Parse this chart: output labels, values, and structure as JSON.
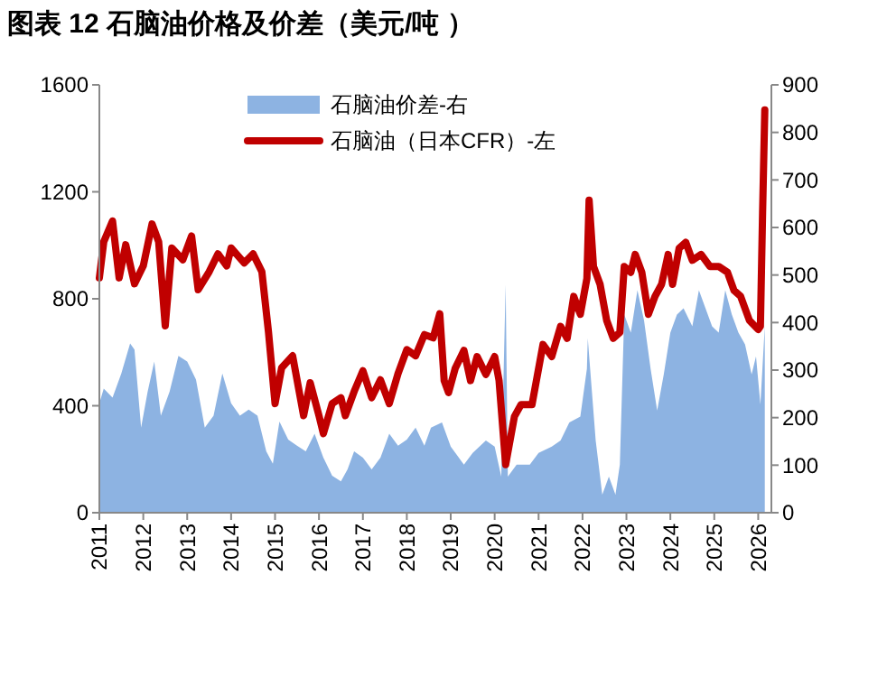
{
  "chart_data": {
    "type": "line",
    "title": "图表 12 石脑油价格及价差（美元/吨 ）",
    "xlim": [
      2011,
      2026.3
    ],
    "xticks": [
      2011,
      2012,
      2013,
      2014,
      2015,
      2016,
      2017,
      2018,
      2019,
      2020,
      2021,
      2022,
      2023,
      2024,
      2025,
      2026
    ],
    "ylim": [
      0,
      1600
    ],
    "yticks": [
      0,
      400,
      800,
      1200,
      1600
    ],
    "y2lim": [
      0,
      900
    ],
    "y2ticks": [
      0,
      100,
      200,
      300,
      400,
      500,
      600,
      700,
      800,
      900
    ],
    "legend": "top",
    "grid": false,
    "marker": "none",
    "line_style": "solid",
    "series": [
      {
        "name": "石脑油价差-右",
        "type": "area",
        "axis": "y2",
        "color": "#8db3e2",
        "x": [
          2011,
          2011.1,
          2011.3,
          2011.5,
          2011.7,
          2011.8,
          2011.95,
          2012.1,
          2012.25,
          2012.4,
          2012.6,
          2012.8,
          2013,
          2013.2,
          2013.4,
          2013.6,
          2013.8,
          2014,
          2014.2,
          2014.4,
          2014.6,
          2014.8,
          2014.95,
          2015.1,
          2015.3,
          2015.5,
          2015.7,
          2015.9,
          2016.1,
          2016.3,
          2016.5,
          2016.65,
          2016.8,
          2017,
          2017.2,
          2017.4,
          2017.6,
          2017.8,
          2018,
          2018.2,
          2018.4,
          2018.55,
          2018.8,
          2019,
          2019.3,
          2019.5,
          2019.8,
          2020,
          2020.15,
          2020.25,
          2020.3,
          2020.5,
          2020.8,
          2021,
          2021.3,
          2021.5,
          2021.7,
          2021.95,
          2022.1,
          2022.12,
          2022.3,
          2022.45,
          2022.6,
          2022.75,
          2022.85,
          2022.95,
          2023.1,
          2023.25,
          2023.4,
          2023.55,
          2023.7,
          2023.85,
          2024,
          2024.15,
          2024.3,
          2024.5,
          2024.65,
          2024.8,
          2024.95,
          2025.1,
          2025.25,
          2025.4,
          2025.55,
          2025.7,
          2025.85,
          2025.95,
          2026.05,
          2026.15
        ],
        "values": [
          230,
          261,
          242,
          293,
          356,
          343,
          179,
          255,
          318,
          204,
          255,
          330,
          318,
          280,
          179,
          204,
          293,
          230,
          204,
          217,
          204,
          129,
          103,
          192,
          154,
          141,
          129,
          166,
          116,
          78,
          66,
          91,
          129,
          116,
          91,
          116,
          166,
          141,
          154,
          179,
          141,
          179,
          190,
          139,
          101,
          126,
          152,
          139,
          76,
          480,
          76,
          101,
          101,
          126,
          139,
          152,
          190,
          202,
          303,
          367,
          152,
          38,
          76,
          38,
          101,
          417,
          379,
          468,
          405,
          303,
          215,
          291,
          379,
          417,
          430,
          392,
          468,
          430,
          392,
          379,
          468,
          417,
          379,
          354,
          291,
          329,
          228,
          392
        ]
      },
      {
        "name": "石脑油（日本CFR）-左",
        "axis": "y",
        "color": "#c00000",
        "x": [
          2011,
          2011.1,
          2011.3,
          2011.45,
          2011.6,
          2011.8,
          2012,
          2012.2,
          2012.35,
          2012.5,
          2012.65,
          2012.9,
          2013.1,
          2013.25,
          2013.5,
          2013.7,
          2013.9,
          2014,
          2014.3,
          2014.5,
          2014.7,
          2014.85,
          2015,
          2015.15,
          2015.4,
          2015.65,
          2015.8,
          2016,
          2016.1,
          2016.3,
          2016.5,
          2016.6,
          2016.8,
          2017,
          2017.2,
          2017.4,
          2017.6,
          2017.8,
          2018,
          2018.2,
          2018.4,
          2018.6,
          2018.75,
          2018.85,
          2018.95,
          2019.1,
          2019.3,
          2019.45,
          2019.6,
          2019.8,
          2020,
          2020.1,
          2020.25,
          2020.3,
          2020.45,
          2020.6,
          2020.85,
          2020.95,
          2021.1,
          2021.3,
          2021.5,
          2021.65,
          2021.8,
          2021.95,
          2022.1,
          2022.15,
          2022.25,
          2022.4,
          2022.55,
          2022.7,
          2022.85,
          2022.95,
          2023.1,
          2023.2,
          2023.35,
          2023.5,
          2023.65,
          2023.8,
          2023.95,
          2024.05,
          2024.2,
          2024.35,
          2024.5,
          2024.7,
          2024.9,
          2025.1,
          2025.3,
          2025.45,
          2025.6,
          2025.8,
          2026,
          2026.05,
          2026.1,
          2026.15
        ],
        "values": [
          878,
          1013,
          1091,
          878,
          1002,
          856,
          923,
          1080,
          1013,
          699,
          990,
          946,
          1035,
          834,
          901,
          968,
          923,
          990,
          934,
          968,
          901,
          677,
          408,
          542,
          587,
          363,
          486,
          363,
          296,
          408,
          430,
          363,
          453,
          531,
          430,
          497,
          408,
          520,
          610,
          587,
          666,
          654,
          744,
          494,
          449,
          539,
          607,
          494,
          584,
          517,
          584,
          494,
          180,
          225,
          360,
          404,
          404,
          494,
          629,
          584,
          697,
          652,
          809,
          742,
          876,
          1169,
          921,
          854,
          719,
          652,
          674,
          921,
          899,
          966,
          899,
          742,
          809,
          854,
          966,
          854,
          989,
          1011,
          944,
          966,
          921,
          921,
          899,
          831,
          809,
          719,
          685,
          697,
          1124,
          1506
        ]
      }
    ]
  }
}
